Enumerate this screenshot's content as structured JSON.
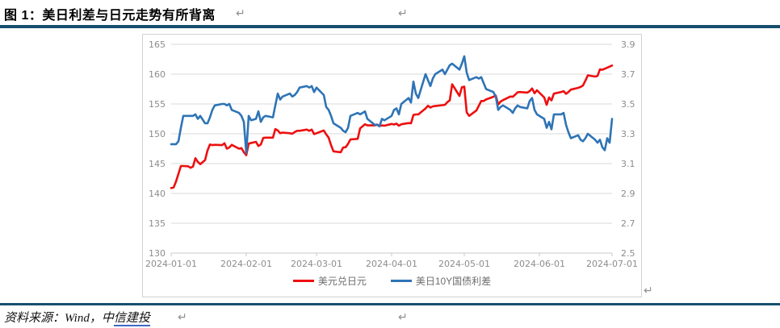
{
  "title": {
    "text": "图 1：美日利差与日元走势有所背离"
  },
  "marks": {
    "return": "↵"
  },
  "footer": {
    "prefix": "资料来源：Wind，中",
    "link_text": "信建投"
  },
  "colors": {
    "rule": "#174f6e",
    "usdjpy_red": "#ee0f0f",
    "spread_blue": "#2e74b5",
    "gridline": "#d9d9d9",
    "axis_text": "#8c8c8c",
    "legend_text": "#6e6e6e",
    "link_underline": "#3f6ac5"
  },
  "chart_data": {
    "type": "line",
    "title": "",
    "xlabel": "",
    "ylabel_left": "",
    "ylabel_right": "",
    "grid": true,
    "legend_position": "bottom",
    "x_axis": {
      "tick_labels": [
        "2024-01-01",
        "2024-02-01",
        "2024-03-01",
        "2024-04-01",
        "2024-05-01",
        "2024-06-01",
        "2024-07-01"
      ],
      "tick_days": [
        0,
        31,
        60,
        91,
        121,
        152,
        182
      ],
      "range_days": [
        0,
        182
      ]
    },
    "y_left": {
      "ticks": [
        165,
        160,
        155,
        150,
        145,
        140,
        135,
        130
      ],
      "range": [
        130,
        165
      ]
    },
    "y_right": {
      "ticks": [
        3.9,
        3.7,
        3.5,
        3.3,
        3.1,
        2.9,
        2.7,
        2.5
      ],
      "range": [
        2.5,
        3.9
      ]
    },
    "series": [
      {
        "name": "美元兑日元",
        "axis": "left",
        "color": "#ee0f0f",
        "points": [
          [
            0,
            140.9
          ],
          [
            1,
            141.0
          ],
          [
            2,
            142.0
          ],
          [
            3,
            143.3
          ],
          [
            4,
            144.6
          ],
          [
            5,
            144.6
          ],
          [
            7,
            144.55
          ],
          [
            8,
            144.3
          ],
          [
            9,
            144.5
          ],
          [
            10,
            145.9
          ],
          [
            11,
            145.3
          ],
          [
            12,
            144.9
          ],
          [
            14,
            145.6
          ],
          [
            15,
            147.2
          ],
          [
            16,
            148.2
          ],
          [
            17,
            148.1
          ],
          [
            18,
            148.15
          ],
          [
            21,
            148.1
          ],
          [
            22,
            148.4
          ],
          [
            23,
            147.5
          ],
          [
            24,
            147.7
          ],
          [
            25,
            148.15
          ],
          [
            28,
            147.5
          ],
          [
            29,
            147.6
          ],
          [
            30,
            146.9
          ],
          [
            31,
            146.4
          ],
          [
            32,
            148.35
          ],
          [
            35,
            148.65
          ],
          [
            36,
            147.95
          ],
          [
            37,
            148.2
          ],
          [
            38,
            149.3
          ],
          [
            39,
            149.35
          ],
          [
            42,
            149.35
          ],
          [
            43,
            150.8
          ],
          [
            44,
            150.55
          ],
          [
            45,
            150.1
          ],
          [
            46,
            150.2
          ],
          [
            49,
            150.1
          ],
          [
            50,
            150.0
          ],
          [
            51,
            150.3
          ],
          [
            52,
            150.5
          ],
          [
            53,
            150.5
          ],
          [
            56,
            150.7
          ],
          [
            57,
            150.5
          ],
          [
            58,
            150.7
          ],
          [
            59,
            149.95
          ],
          [
            60,
            150.1
          ],
          [
            63,
            150.55
          ],
          [
            64,
            149.9
          ],
          [
            65,
            149.35
          ],
          [
            66,
            148.1
          ],
          [
            67,
            147.05
          ],
          [
            70,
            146.9
          ],
          [
            71,
            147.7
          ],
          [
            72,
            147.75
          ],
          [
            73,
            148.3
          ],
          [
            74,
            149.05
          ],
          [
            77,
            149.15
          ],
          [
            78,
            150.9
          ],
          [
            79,
            151.25
          ],
          [
            80,
            151.6
          ],
          [
            81,
            151.4
          ],
          [
            84,
            151.4
          ],
          [
            85,
            151.55
          ],
          [
            86,
            151.3
          ],
          [
            87,
            151.4
          ],
          [
            88,
            151.35
          ],
          [
            91,
            151.65
          ],
          [
            92,
            151.55
          ],
          [
            93,
            151.7
          ],
          [
            94,
            151.35
          ],
          [
            95,
            151.6
          ],
          [
            98,
            151.8
          ],
          [
            99,
            151.75
          ],
          [
            100,
            153.15
          ],
          [
            101,
            153.25
          ],
          [
            102,
            153.25
          ],
          [
            105,
            154.25
          ],
          [
            106,
            154.7
          ],
          [
            107,
            154.4
          ],
          [
            108,
            154.6
          ],
          [
            109,
            154.65
          ],
          [
            112,
            154.8
          ],
          [
            113,
            154.85
          ],
          [
            114,
            155.3
          ],
          [
            115,
            155.6
          ],
          [
            116,
            158.3
          ],
          [
            119,
            156.35
          ],
          [
            120,
            157.8
          ],
          [
            121,
            157.9
          ],
          [
            122,
            153.6
          ],
          [
            123,
            153.0
          ],
          [
            126,
            153.9
          ],
          [
            127,
            154.7
          ],
          [
            128,
            155.5
          ],
          [
            129,
            155.5
          ],
          [
            130,
            155.75
          ],
          [
            133,
            156.2
          ],
          [
            134,
            156.4
          ],
          [
            135,
            154.9
          ],
          [
            136,
            155.4
          ],
          [
            137,
            155.65
          ],
          [
            140,
            156.25
          ],
          [
            141,
            156.2
          ],
          [
            142,
            156.55
          ],
          [
            143,
            156.95
          ],
          [
            144,
            157.0
          ],
          [
            147,
            156.9
          ],
          [
            148,
            157.15
          ],
          [
            149,
            157.6
          ],
          [
            150,
            156.8
          ],
          [
            151,
            157.3
          ],
          [
            154,
            156.1
          ],
          [
            155,
            154.85
          ],
          [
            156,
            156.1
          ],
          [
            157,
            155.6
          ],
          [
            158,
            156.75
          ],
          [
            161,
            157.0
          ],
          [
            162,
            157.15
          ],
          [
            163,
            156.7
          ],
          [
            164,
            157.0
          ],
          [
            165,
            157.4
          ],
          [
            168,
            157.7
          ],
          [
            169,
            157.85
          ],
          [
            170,
            158.1
          ],
          [
            171,
            158.9
          ],
          [
            172,
            159.8
          ],
          [
            175,
            159.6
          ],
          [
            176,
            159.7
          ],
          [
            177,
            160.8
          ],
          [
            178,
            160.75
          ],
          [
            179,
            160.9
          ],
          [
            182,
            161.45
          ]
        ]
      },
      {
        "name": "美日10Y国债利差",
        "axis": "right",
        "color": "#2e74b5",
        "points": [
          [
            0,
            3.23
          ],
          [
            2,
            3.23
          ],
          [
            3,
            3.25
          ],
          [
            4,
            3.34
          ],
          [
            5,
            3.42
          ],
          [
            7,
            3.42
          ],
          [
            9,
            3.42
          ],
          [
            10,
            3.43
          ],
          [
            11,
            3.4
          ],
          [
            12,
            3.42
          ],
          [
            14,
            3.37
          ],
          [
            15,
            3.37
          ],
          [
            16,
            3.41
          ],
          [
            17,
            3.46
          ],
          [
            18,
            3.49
          ],
          [
            21,
            3.5
          ],
          [
            22,
            3.5
          ],
          [
            23,
            3.49
          ],
          [
            24,
            3.5
          ],
          [
            25,
            3.46
          ],
          [
            28,
            3.44
          ],
          [
            29,
            3.42
          ],
          [
            30,
            3.38
          ],
          [
            31,
            3.17
          ],
          [
            32,
            3.42
          ],
          [
            33,
            3.39
          ],
          [
            35,
            3.4
          ],
          [
            36,
            3.45
          ],
          [
            37,
            3.38
          ],
          [
            38,
            3.41
          ],
          [
            39,
            3.42
          ],
          [
            42,
            3.41
          ],
          [
            43,
            3.49
          ],
          [
            44,
            3.57
          ],
          [
            45,
            3.53
          ],
          [
            46,
            3.55
          ],
          [
            49,
            3.57
          ],
          [
            50,
            3.55
          ],
          [
            51,
            3.56
          ],
          [
            52,
            3.58
          ],
          [
            53,
            3.61
          ],
          [
            56,
            3.62
          ],
          [
            57,
            3.61
          ],
          [
            58,
            3.62
          ],
          [
            59,
            3.58
          ],
          [
            60,
            3.61
          ],
          [
            63,
            3.56
          ],
          [
            64,
            3.48
          ],
          [
            65,
            3.46
          ],
          [
            66,
            3.42
          ],
          [
            67,
            3.37
          ],
          [
            70,
            3.34
          ],
          [
            71,
            3.32
          ],
          [
            72,
            3.31
          ],
          [
            73,
            3.34
          ],
          [
            74,
            3.42
          ],
          [
            77,
            3.44
          ],
          [
            78,
            3.43
          ],
          [
            79,
            3.44
          ],
          [
            80,
            3.45
          ],
          [
            81,
            3.4
          ],
          [
            84,
            3.36
          ],
          [
            85,
            3.36
          ],
          [
            86,
            3.35
          ],
          [
            87,
            3.4
          ],
          [
            88,
            3.39
          ],
          [
            91,
            3.42
          ],
          [
            92,
            3.46
          ],
          [
            93,
            3.47
          ],
          [
            94,
            3.43
          ],
          [
            95,
            3.5
          ],
          [
            98,
            3.54
          ],
          [
            99,
            3.51
          ],
          [
            100,
            3.65
          ],
          [
            101,
            3.57
          ],
          [
            102,
            3.54
          ],
          [
            105,
            3.7
          ],
          [
            106,
            3.66
          ],
          [
            107,
            3.62
          ],
          [
            108,
            3.67
          ],
          [
            109,
            3.7
          ],
          [
            112,
            3.73
          ],
          [
            113,
            3.7
          ],
          [
            114,
            3.73
          ],
          [
            115,
            3.76
          ],
          [
            116,
            3.77
          ],
          [
            119,
            3.73
          ],
          [
            120,
            3.77
          ],
          [
            121,
            3.82
          ],
          [
            122,
            3.71
          ],
          [
            123,
            3.66
          ],
          [
            126,
            3.68
          ],
          [
            127,
            3.67
          ],
          [
            128,
            3.68
          ],
          [
            129,
            3.64
          ],
          [
            130,
            3.6
          ],
          [
            133,
            3.58
          ],
          [
            134,
            3.55
          ],
          [
            135,
            3.46
          ],
          [
            136,
            3.48
          ],
          [
            137,
            3.49
          ],
          [
            140,
            3.46
          ],
          [
            141,
            3.44
          ],
          [
            142,
            3.47
          ],
          [
            143,
            3.49
          ],
          [
            144,
            3.48
          ],
          [
            147,
            3.47
          ],
          [
            148,
            3.52
          ],
          [
            149,
            3.54
          ],
          [
            150,
            3.46
          ],
          [
            151,
            3.43
          ],
          [
            154,
            3.4
          ],
          [
            155,
            3.34
          ],
          [
            156,
            3.38
          ],
          [
            157,
            3.33
          ],
          [
            158,
            3.43
          ],
          [
            161,
            3.43
          ],
          [
            162,
            3.44
          ],
          [
            163,
            3.36
          ],
          [
            164,
            3.31
          ],
          [
            165,
            3.27
          ],
          [
            168,
            3.29
          ],
          [
            169,
            3.26
          ],
          [
            170,
            3.25
          ],
          [
            171,
            3.27
          ],
          [
            172,
            3.3
          ],
          [
            175,
            3.26
          ],
          [
            176,
            3.24
          ],
          [
            177,
            3.26
          ],
          [
            178,
            3.21
          ],
          [
            179,
            3.19
          ],
          [
            180,
            3.27
          ],
          [
            181,
            3.24
          ],
          [
            182,
            3.4
          ]
        ]
      }
    ]
  }
}
